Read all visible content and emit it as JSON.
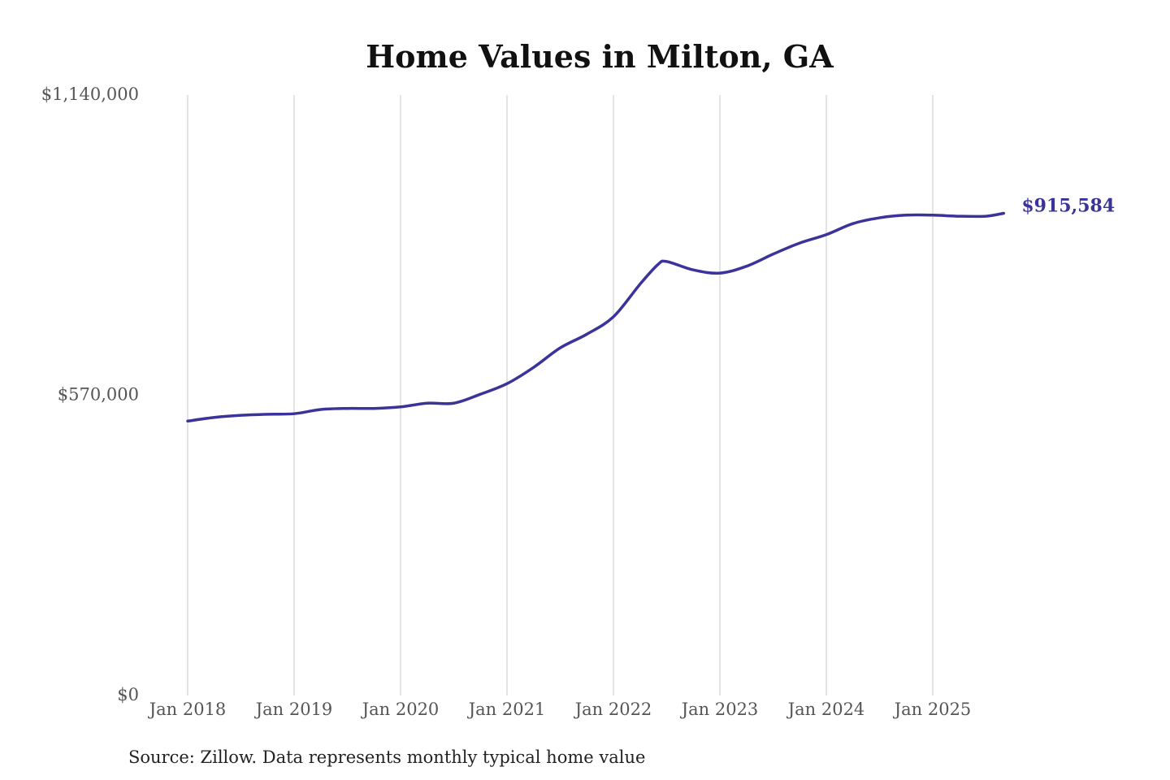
{
  "chart_data": {
    "type": "line",
    "title": "Home Values in Milton, GA",
    "source": "Source: Zillow. Data represents monthly typical home value",
    "xlabel": "",
    "ylabel": "",
    "ylim": [
      0,
      1140000
    ],
    "y_ticks": [
      {
        "value": 0,
        "label": "$0"
      },
      {
        "value": 570000,
        "label": "$570,000"
      },
      {
        "value": 1140000,
        "label": "$1,140,000"
      }
    ],
    "x_ticks": [
      {
        "value": "2018-01",
        "label": "Jan 2018"
      },
      {
        "value": "2019-01",
        "label": "Jan 2019"
      },
      {
        "value": "2020-01",
        "label": "Jan 2020"
      },
      {
        "value": "2021-01",
        "label": "Jan 2021"
      },
      {
        "value": "2022-01",
        "label": "Jan 2022"
      },
      {
        "value": "2023-01",
        "label": "Jan 2023"
      },
      {
        "value": "2024-01",
        "label": "Jan 2024"
      },
      {
        "value": "2025-01",
        "label": "Jan 2025"
      }
    ],
    "grid": {
      "vertical": true,
      "horizontal": false
    },
    "line_color": "#3a339a",
    "end_label": "$915,584",
    "x": [
      "2018-01",
      "2018-04",
      "2018-07",
      "2018-10",
      "2019-01",
      "2019-04",
      "2019-07",
      "2019-10",
      "2020-01",
      "2020-04",
      "2020-07",
      "2020-10",
      "2021-01",
      "2021-04",
      "2021-07",
      "2021-10",
      "2022-01",
      "2022-04",
      "2022-06",
      "2022-07",
      "2022-10",
      "2023-01",
      "2023-04",
      "2023-07",
      "2023-10",
      "2024-01",
      "2024-04",
      "2024-07",
      "2024-10",
      "2025-01",
      "2025-04",
      "2025-07",
      "2025-09"
    ],
    "values": [
      521000,
      528000,
      532000,
      534000,
      535000,
      543000,
      545000,
      545000,
      548000,
      555000,
      555000,
      572000,
      592000,
      623000,
      660000,
      686000,
      719000,
      781000,
      818000,
      824000,
      808000,
      802000,
      815000,
      838000,
      859000,
      875000,
      896000,
      907000,
      912000,
      912000,
      910000,
      910000,
      915584
    ]
  }
}
